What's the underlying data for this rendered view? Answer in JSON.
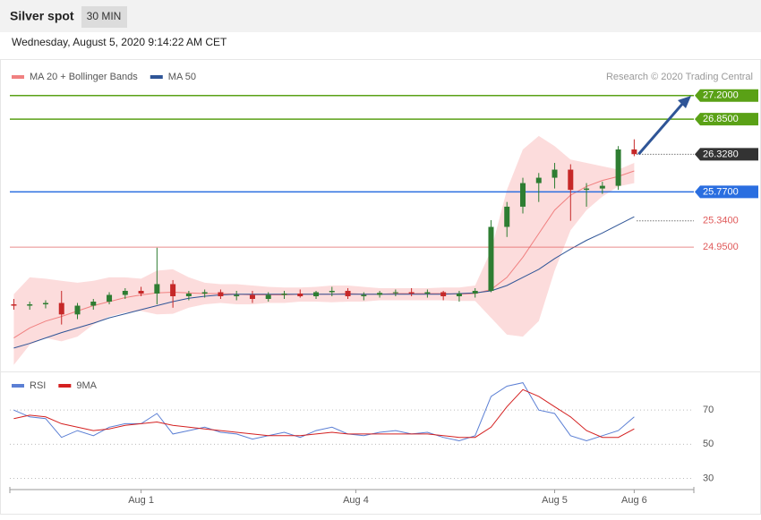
{
  "header": {
    "title": "Silver spot",
    "interval": "30 MIN",
    "date": "Wednesday, August 5, 2020 9:14:22 AM CET",
    "credit": "Research © 2020 Trading Central"
  },
  "chart_data": [
    {
      "type": "candlestick",
      "up_color": "#2e7d32",
      "down_color": "#c62828",
      "xlim": [
        0,
        172
      ],
      "ylim": [
        23.17,
        27.29
      ],
      "xticks": [
        {
          "value": 33,
          "label": "Aug 1"
        },
        {
          "value": 87,
          "label": "Aug 4"
        },
        {
          "value": 137,
          "label": "Aug 5"
        },
        {
          "value": 157,
          "label": "Aug 6"
        }
      ],
      "x": [
        1,
        5,
        9,
        13,
        17,
        21,
        25,
        29,
        33,
        37,
        41,
        45,
        49,
        53,
        57,
        61,
        65,
        69,
        73,
        77,
        81,
        85,
        89,
        93,
        97,
        101,
        105,
        109,
        113,
        117,
        121,
        125,
        129,
        133,
        137,
        141,
        145,
        149,
        153,
        157
      ],
      "open": [
        24.1,
        24.08,
        24.1,
        24.12,
        23.95,
        24.08,
        24.14,
        24.24,
        24.3,
        24.26,
        24.4,
        24.22,
        24.26,
        24.28,
        24.22,
        24.24,
        24.18,
        24.24,
        24.26,
        24.22,
        24.28,
        24.3,
        24.22,
        24.24,
        24.27,
        24.28,
        24.26,
        24.28,
        24.22,
        24.26,
        24.3,
        25.25,
        25.55,
        25.9,
        25.98,
        26.1,
        25.8,
        25.82,
        25.86,
        26.4
      ],
      "high": [
        24.18,
        24.14,
        24.16,
        24.3,
        24.12,
        24.18,
        24.28,
        24.34,
        24.36,
        24.94,
        24.46,
        24.3,
        24.32,
        24.32,
        24.3,
        24.3,
        24.28,
        24.3,
        24.32,
        24.3,
        24.36,
        24.34,
        24.28,
        24.3,
        24.32,
        24.34,
        24.32,
        24.3,
        24.3,
        24.34,
        25.35,
        25.62,
        25.98,
        26.05,
        26.2,
        26.18,
        25.9,
        25.92,
        26.45,
        26.55
      ],
      "low": [
        24.02,
        24.02,
        24.04,
        23.8,
        23.88,
        24.02,
        24.1,
        24.18,
        24.22,
        24.1,
        24.05,
        24.16,
        24.2,
        24.18,
        24.16,
        24.12,
        24.14,
        24.18,
        24.2,
        24.18,
        24.22,
        24.18,
        24.16,
        24.2,
        24.22,
        24.22,
        24.2,
        24.16,
        24.14,
        24.2,
        24.28,
        25.1,
        25.45,
        25.62,
        25.82,
        25.34,
        25.55,
        25.74,
        25.8,
        26.3
      ],
      "close": [
        24.08,
        24.1,
        24.12,
        23.95,
        24.08,
        24.14,
        24.24,
        24.3,
        24.26,
        24.4,
        24.22,
        24.26,
        24.28,
        24.22,
        24.24,
        24.18,
        24.24,
        24.26,
        24.22,
        24.28,
        24.3,
        24.22,
        24.24,
        24.27,
        24.28,
        24.26,
        24.28,
        24.22,
        24.26,
        24.3,
        25.25,
        25.55,
        25.9,
        25.98,
        26.1,
        25.8,
        25.82,
        25.86,
        26.4,
        26.33
      ],
      "series": [
        {
          "name": "MA 20 + Bollinger Bands",
          "color": "#f08080",
          "band_color": "#fcdcdc",
          "values": [
            23.6,
            23.75,
            23.85,
            23.92,
            24.0,
            24.08,
            24.14,
            24.2,
            24.24,
            24.27,
            24.28,
            24.27,
            24.26,
            24.26,
            24.25,
            24.24,
            24.24,
            24.24,
            24.25,
            24.25,
            24.25,
            24.26,
            24.25,
            24.25,
            24.26,
            24.26,
            24.26,
            24.26,
            24.25,
            24.26,
            24.32,
            24.5,
            24.8,
            25.15,
            25.5,
            25.72,
            25.85,
            25.94,
            26.0,
            26.08
          ],
          "upper": [
            24.25,
            24.5,
            24.48,
            24.45,
            24.42,
            24.45,
            24.5,
            24.5,
            24.48,
            24.6,
            24.62,
            24.5,
            24.42,
            24.4,
            24.4,
            24.38,
            24.36,
            24.35,
            24.35,
            24.36,
            24.38,
            24.38,
            24.36,
            24.34,
            24.34,
            24.34,
            24.34,
            24.35,
            24.35,
            24.38,
            24.9,
            25.8,
            26.4,
            26.6,
            26.45,
            26.25,
            26.2,
            26.15,
            26.1,
            26.2
          ],
          "lower": [
            23.2,
            23.5,
            23.6,
            23.55,
            23.62,
            23.8,
            23.92,
            23.98,
            24.0,
            23.95,
            23.96,
            24.05,
            24.1,
            24.12,
            24.1,
            24.1,
            24.12,
            24.12,
            24.14,
            24.14,
            24.13,
            24.14,
            24.14,
            24.16,
            24.16,
            24.16,
            24.16,
            24.16,
            24.15,
            24.15,
            23.9,
            23.65,
            23.62,
            23.85,
            24.6,
            25.2,
            25.5,
            25.7,
            25.85,
            25.9
          ]
        },
        {
          "name": "MA 50",
          "color": "#2f5597",
          "values": [
            23.45,
            23.52,
            23.6,
            23.68,
            23.75,
            23.82,
            23.9,
            23.96,
            24.02,
            24.08,
            24.14,
            24.19,
            24.22,
            24.24,
            24.25,
            24.25,
            24.25,
            24.25,
            24.25,
            24.25,
            24.25,
            24.25,
            24.25,
            24.25,
            24.25,
            24.25,
            24.25,
            24.25,
            24.26,
            24.27,
            24.3,
            24.38,
            24.5,
            24.62,
            24.78,
            24.92,
            25.05,
            25.16,
            25.28,
            25.4
          ]
        }
      ],
      "levels": [
        {
          "value": 27.2,
          "label": "27.2000",
          "color": "#5aa116",
          "style": "box",
          "line": "full"
        },
        {
          "value": 26.85,
          "label": "26.8500",
          "color": "#5aa116",
          "style": "box",
          "line": "full"
        },
        {
          "value": 26.328,
          "label": "26.3280",
          "color": "#333333",
          "style": "box",
          "line": "dotted"
        },
        {
          "value": 25.77,
          "label": "25.7700",
          "color": "#2a6ee0",
          "style": "box",
          "line": "full"
        },
        {
          "value": 25.34,
          "label": "25.3400",
          "color": "#e05a5a",
          "style": "text",
          "line": "dotted"
        },
        {
          "value": 24.95,
          "label": "24.9500",
          "color": "#e05a5a",
          "style": "text",
          "line": "full"
        }
      ]
    },
    {
      "type": "line",
      "xlim": [
        0,
        172
      ],
      "ylim": [
        24.5,
        90
      ],
      "yticks": [
        30,
        50,
        70
      ],
      "grid": true,
      "x": [
        1,
        5,
        9,
        13,
        17,
        21,
        25,
        29,
        33,
        37,
        41,
        45,
        49,
        53,
        57,
        61,
        65,
        69,
        73,
        77,
        81,
        85,
        89,
        93,
        97,
        101,
        105,
        109,
        113,
        117,
        121,
        125,
        129,
        133,
        137,
        141,
        145,
        149,
        153,
        157
      ],
      "series": [
        {
          "name": "RSI",
          "color": "#5b7fd4",
          "values": [
            70,
            66,
            65,
            54,
            58,
            55,
            60,
            62,
            62,
            68,
            56,
            58,
            60,
            57,
            56,
            53,
            55,
            57,
            54,
            58,
            60,
            56,
            55,
            57,
            58,
            56,
            57,
            54,
            52,
            55,
            78,
            84,
            86,
            70,
            68,
            55,
            52,
            55,
            58,
            66
          ]
        },
        {
          "name": "9MA",
          "color": "#d42020",
          "values": [
            65,
            67,
            66,
            62,
            60,
            58,
            59,
            61,
            62,
            63,
            61,
            60,
            59,
            58,
            57,
            56,
            55,
            55,
            55,
            56,
            57,
            56,
            56,
            56,
            56,
            56,
            56,
            55,
            54,
            54,
            60,
            72,
            82,
            78,
            72,
            66,
            58,
            54,
            54,
            59
          ]
        }
      ]
    }
  ]
}
